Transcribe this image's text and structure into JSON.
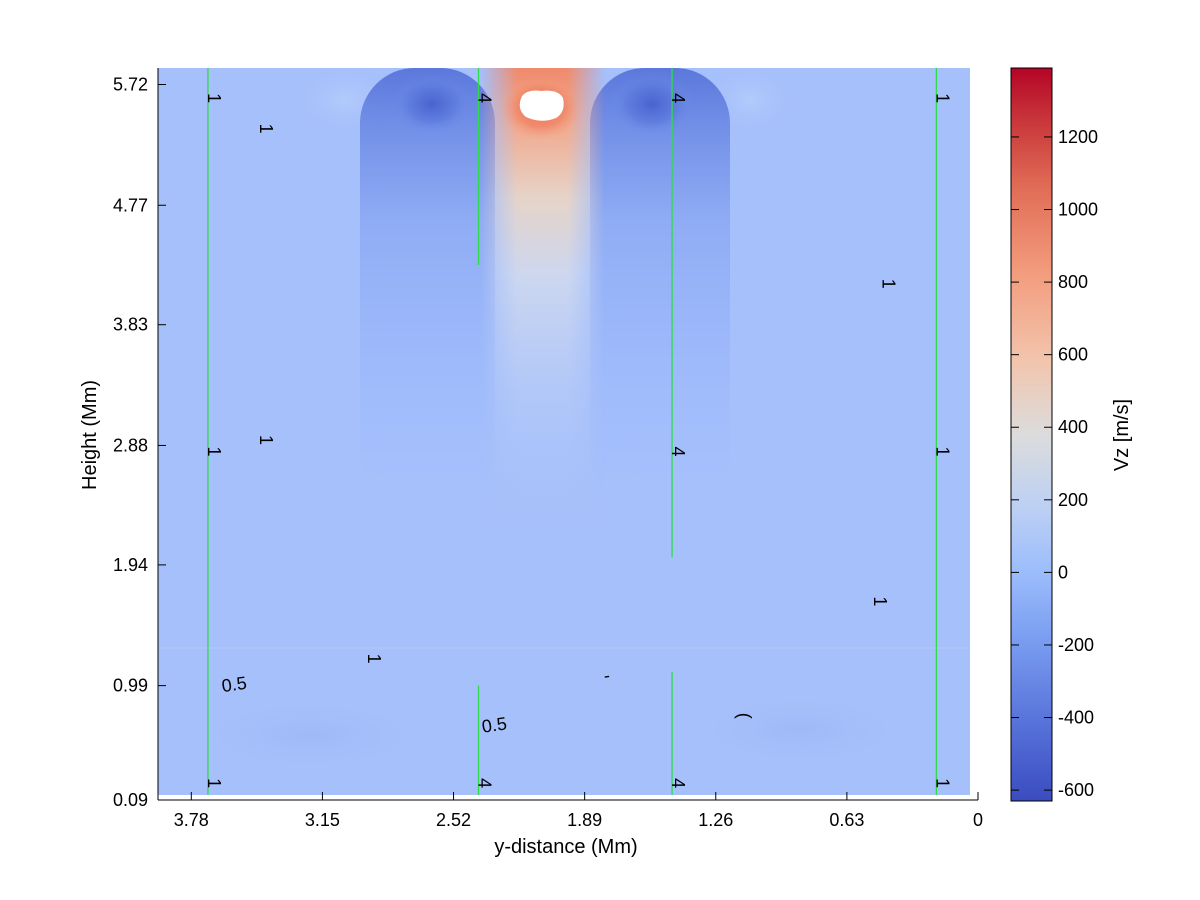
{
  "chart_data": {
    "type": "heatmap",
    "title": "",
    "xlabel": "y-distance (Mm)",
    "ylabel": "Height (Mm)",
    "x_reversed": true,
    "xlim": [
      3.94,
      0
    ],
    "ylim": [
      0.09,
      5.85
    ],
    "x_ticks": [
      "3.78",
      "3.15",
      "2.52",
      "1.89",
      "1.26",
      "0.63",
      "0"
    ],
    "y_ticks": [
      "0.09",
      "0.99",
      "1.94",
      "2.88",
      "3.83",
      "4.77",
      "5.72"
    ],
    "colorbar": {
      "label": "Vz [m/s]",
      "range": [
        -630,
        1390
      ],
      "ticks": [
        "-600",
        "-400",
        "-200",
        "0",
        "200",
        "400",
        "600",
        "800",
        "1000",
        "1200"
      ],
      "colormap": "coolwarm"
    },
    "field_background_vz": -120,
    "field_features": [
      {
        "kind": "upflow",
        "y_center": 2.05,
        "z_top": 5.8,
        "peak_vz": 1390,
        "note": "saturated (white) at top"
      },
      {
        "kind": "downflow",
        "y_center": 2.6,
        "z_top": 5.6,
        "peak_vz": -500
      },
      {
        "kind": "downflow",
        "y_center": 1.47,
        "z_top": 5.6,
        "peak_vz": -520
      }
    ],
    "field_lines": [
      {
        "y": 3.7,
        "z_range": [
          0.09,
          5.85
        ]
      },
      {
        "y": 2.4,
        "z_range": [
          0.09,
          0.99
        ]
      },
      {
        "y": 2.4,
        "z_range": [
          4.3,
          5.85
        ]
      },
      {
        "y": 1.47,
        "z_range": [
          0.09,
          1.1
        ]
      },
      {
        "y": 1.47,
        "z_range": [
          2.0,
          5.85
        ]
      },
      {
        "y": 0.2,
        "z_range": [
          0.09,
          5.85
        ]
      }
    ],
    "contour_labels": [
      {
        "text": "1",
        "y": 3.7,
        "z": 5.66
      },
      {
        "text": "1",
        "y": 3.45,
        "z": 5.42
      },
      {
        "text": "4",
        "y": 2.4,
        "z": 5.66
      },
      {
        "text": "4",
        "y": 1.47,
        "z": 5.66
      },
      {
        "text": "1",
        "y": 0.2,
        "z": 5.66
      },
      {
        "text": "1",
        "y": 0.46,
        "z": 4.2
      },
      {
        "text": "1",
        "y": 3.7,
        "z": 2.88
      },
      {
        "text": "1",
        "y": 3.45,
        "z": 2.97
      },
      {
        "text": "4",
        "y": 1.47,
        "z": 2.88
      },
      {
        "text": "1",
        "y": 0.2,
        "z": 2.88
      },
      {
        "text": "1",
        "y": 0.5,
        "z": 1.7
      },
      {
        "text": "1",
        "y": 2.93,
        "z": 1.25
      },
      {
        "text": "-",
        "y": 1.78,
        "z": 1.07
      },
      {
        "text": "0.5",
        "y": 3.57,
        "z": 1.0
      },
      {
        "text": "0.5",
        "y": 2.32,
        "z": 0.68
      },
      {
        "text": "(",
        "y": 1.15,
        "z": 0.8
      },
      {
        "text": "1",
        "y": 3.7,
        "z": 0.27
      },
      {
        "text": "4",
        "y": 2.4,
        "z": 0.27
      },
      {
        "text": "4",
        "y": 1.47,
        "z": 0.27
      },
      {
        "text": "1",
        "y": 0.2,
        "z": 0.27
      }
    ]
  }
}
